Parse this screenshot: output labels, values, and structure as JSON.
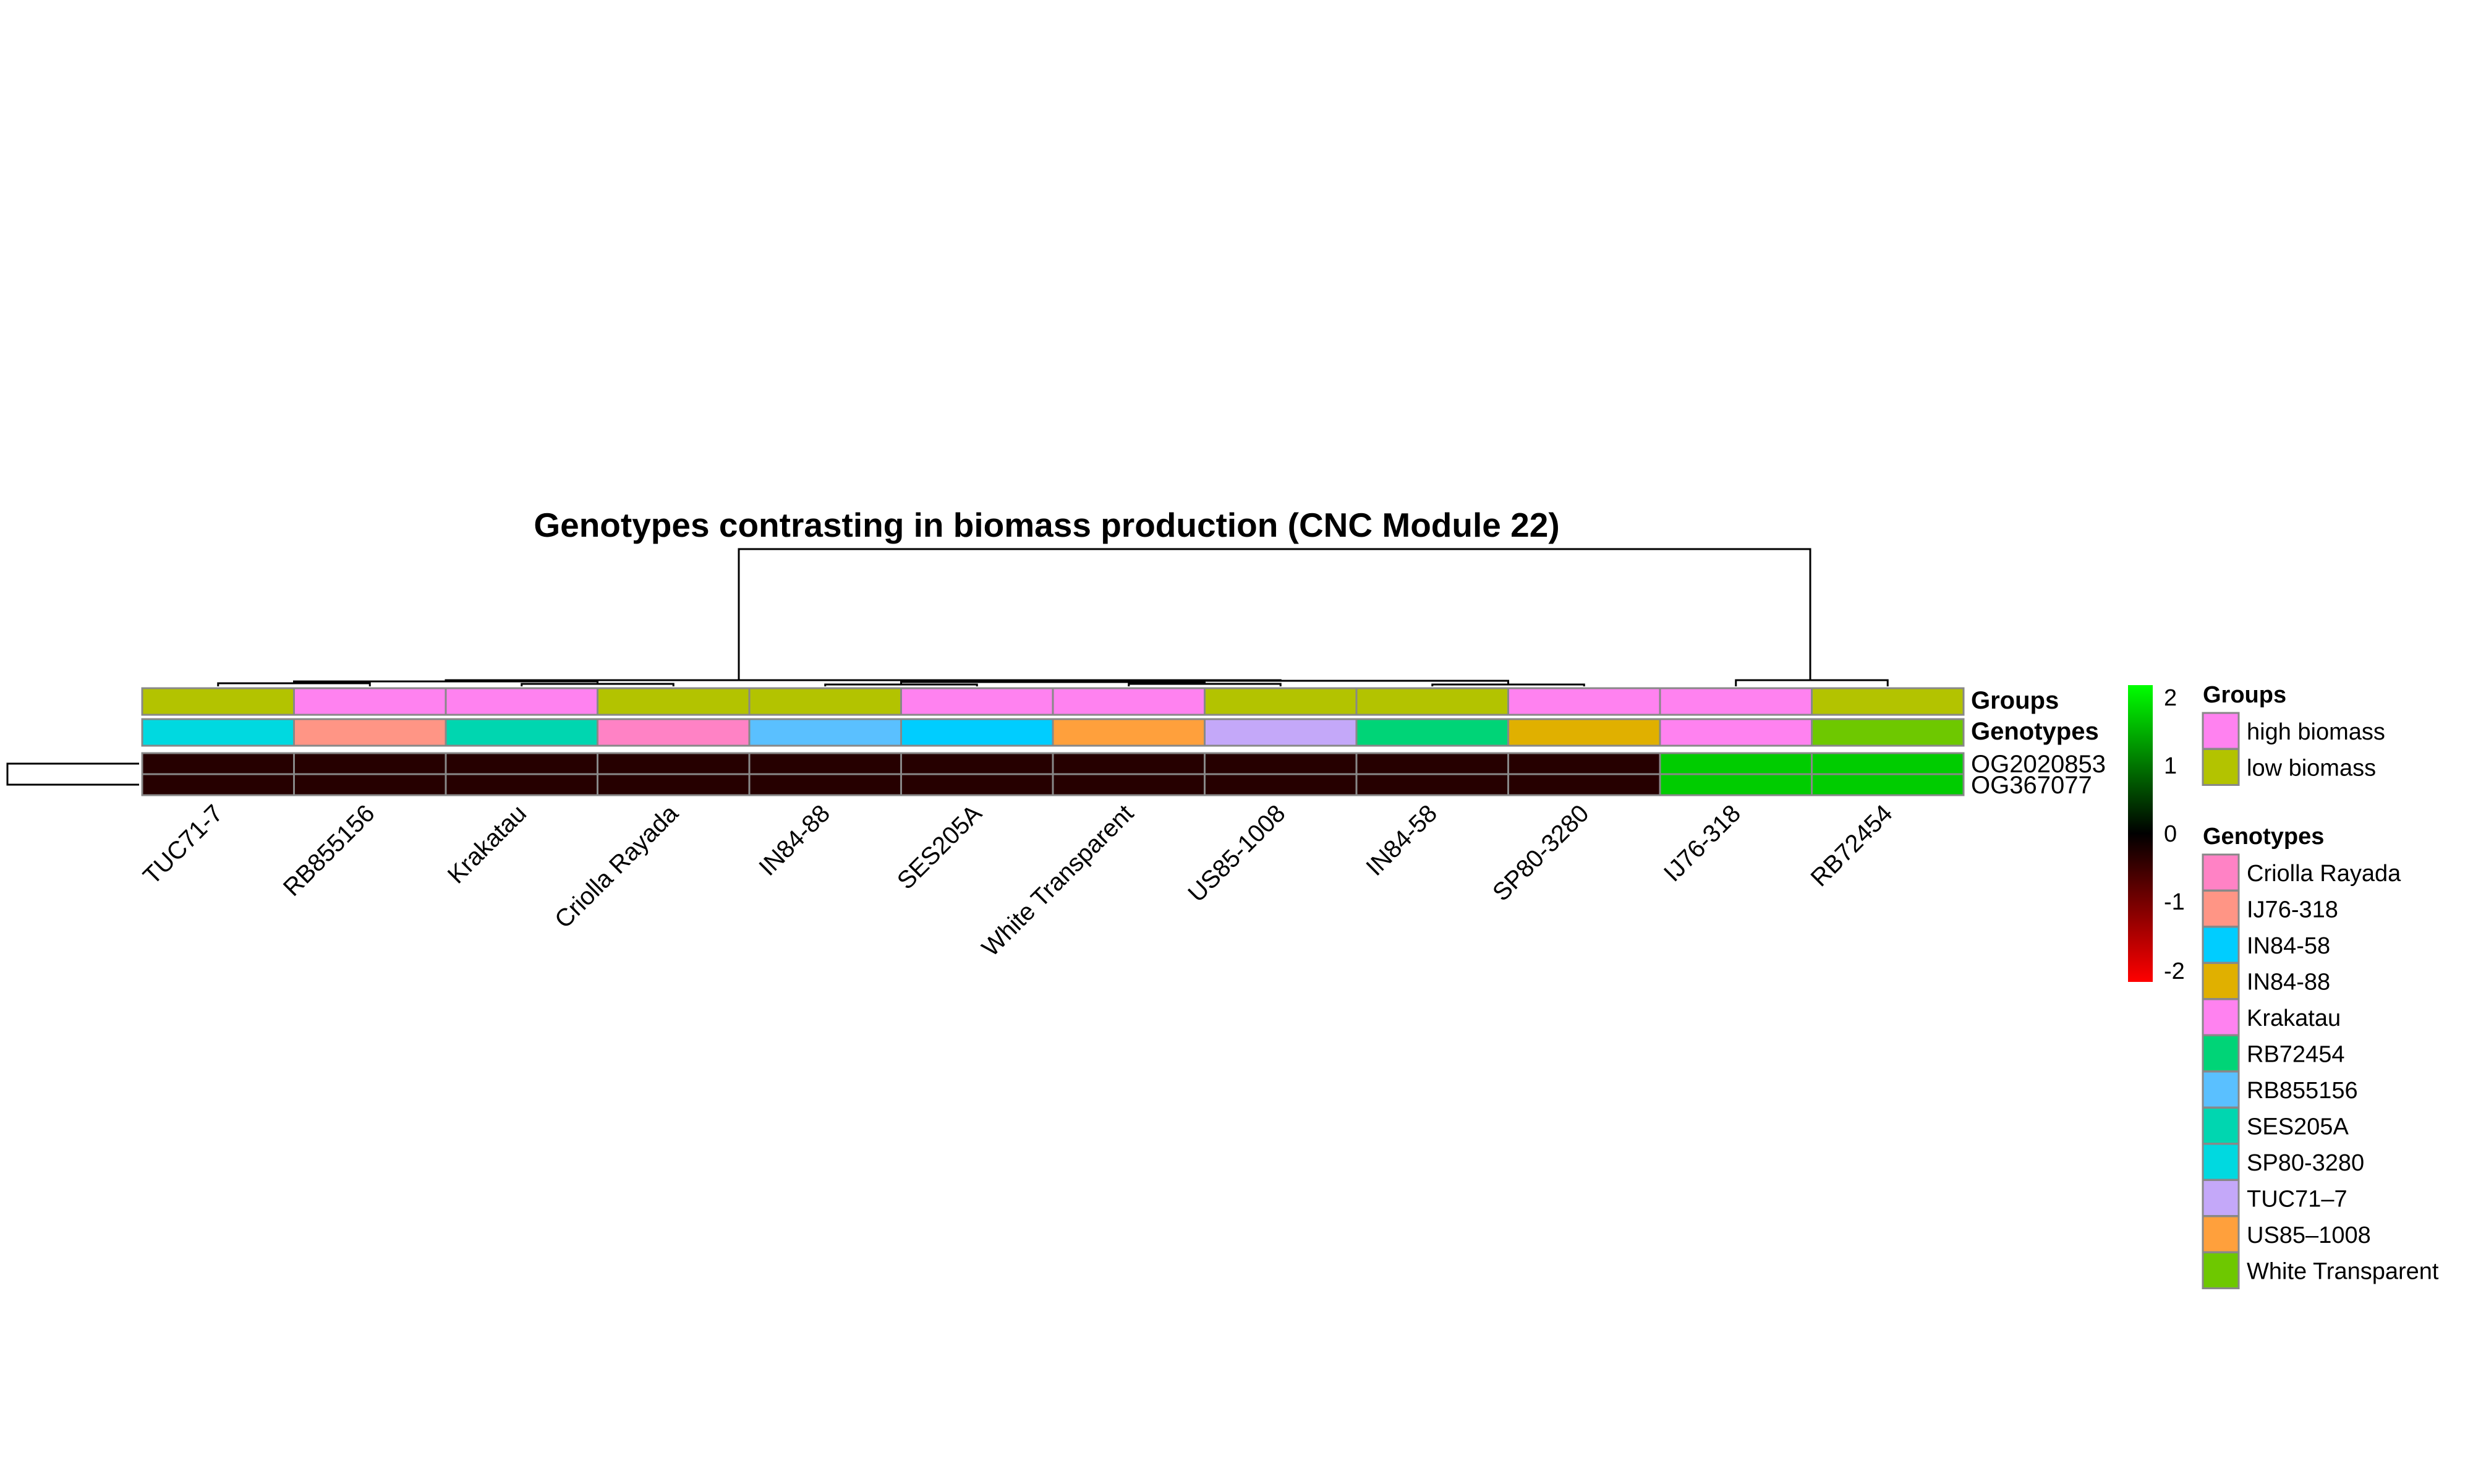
{
  "chart_data": {
    "type": "heatmap",
    "title": "Genotypes contrasting in biomass production (CNC Module 22)",
    "columns": [
      "TUC71-7",
      "RB855156",
      "Krakatau",
      "Criolla Rayada",
      "IN84-88",
      "SES205A",
      "White Transparent",
      "US85-1008",
      "IN84-58",
      "SP80-3280",
      "IJ76-318",
      "RB72454"
    ],
    "rows": [
      "OG2020853",
      "OG367077"
    ],
    "values": [
      [
        -0.3,
        -0.3,
        -0.3,
        -0.3,
        -0.3,
        -0.3,
        -0.3,
        -0.3,
        -0.3,
        -0.3,
        1.6,
        1.6
      ],
      [
        -0.3,
        -0.3,
        -0.3,
        -0.3,
        -0.3,
        -0.3,
        -0.3,
        -0.3,
        -0.3,
        -0.3,
        1.6,
        1.6
      ]
    ],
    "annotation_labels": [
      "Groups",
      "Genotypes"
    ],
    "annotations": {
      "Groups": [
        "low biomass",
        "high biomass",
        "high biomass",
        "low biomass",
        "low biomass",
        "high biomass",
        "high biomass",
        "low biomass",
        "low biomass",
        "high biomass",
        "high biomass",
        "low biomass"
      ],
      "Genotypes": [
        "SP80-3280",
        "IJ76-318",
        "SES205A",
        "Criolla Rayada",
        "RB855156",
        "IN84-58",
        "US85–1008",
        "TUC71–7",
        "RB72454",
        "IN84-88",
        "Krakatau",
        "White Transparent"
      ]
    },
    "color_scale": {
      "min": -2,
      "max": 2,
      "ticks": [
        "2",
        "1",
        "0",
        "-1",
        "-2"
      ],
      "low_color": "#ff0000",
      "mid_color": "#000000",
      "high_color": "#00ff00"
    },
    "legends": [
      {
        "title": "Groups",
        "items": [
          {
            "label": "high biomass",
            "color": "#ff82f0"
          },
          {
            "label": "low biomass",
            "color": "#b3c300"
          }
        ]
      },
      {
        "title": "Genotypes",
        "items": [
          {
            "label": "Criolla Rayada",
            "color": "#ff82c5"
          },
          {
            "label": "IJ76-318",
            "color": "#ff9585"
          },
          {
            "label": "IN84-58",
            "color": "#00cdff"
          },
          {
            "label": "IN84-88",
            "color": "#e0b000"
          },
          {
            "label": "Krakatau",
            "color": "#ff82f0"
          },
          {
            "label": "RB72454",
            "color": "#00d477"
          },
          {
            "label": "RB855156",
            "color": "#5ac0ff"
          },
          {
            "label": "SES205A",
            "color": "#00d6b0"
          },
          {
            "label": "SP80-3280",
            "color": "#00d9e0"
          },
          {
            "label": "TUC71–7",
            "color": "#c4a8f9"
          },
          {
            "label": "US85–1008",
            "color": "#ffa03c"
          },
          {
            "label": "White Transparent",
            "color": "#6ec800"
          }
        ]
      }
    ]
  }
}
